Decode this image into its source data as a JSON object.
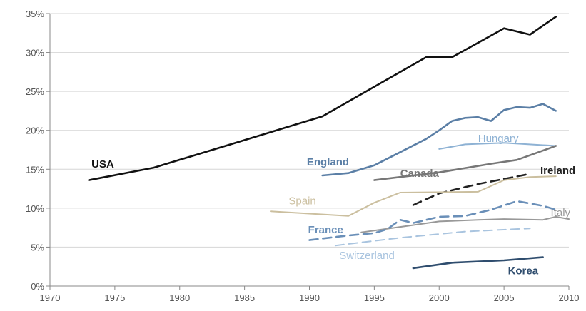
{
  "chart_data": {
    "type": "line",
    "title": "",
    "xlabel": "",
    "ylabel": "",
    "xlim": [
      1970,
      2010
    ],
    "ylim": [
      0,
      35
    ],
    "x_ticks": [
      1970,
      1975,
      1980,
      1985,
      1990,
      1995,
      2000,
      2005,
      2010
    ],
    "y_ticks": [
      0,
      5,
      10,
      15,
      20,
      25,
      30,
      35
    ],
    "y_tick_labels": [
      "0%",
      "5%",
      "10%",
      "15%",
      "20%",
      "25%",
      "30%",
      "35%"
    ],
    "x_tick_labels": [
      "1970",
      "1975",
      "1980",
      "1985",
      "1990",
      "1995",
      "2000",
      "2005",
      "2010"
    ],
    "grid": "horizontal",
    "legend": "none (direct labels)",
    "series": [
      {
        "name": "USA",
        "color": "#111111",
        "dash": "solid",
        "bold": true,
        "points": [
          [
            1973,
            13.6
          ],
          [
            1978,
            15.2
          ],
          [
            1991,
            21.8
          ],
          [
            1999,
            29.4
          ],
          [
            2001,
            29.4
          ],
          [
            2005,
            33.1
          ],
          [
            2007,
            32.3
          ],
          [
            2009,
            34.6
          ]
        ]
      },
      {
        "name": "England",
        "color": "#5b7fa6",
        "dash": "solid",
        "bold": true,
        "points": [
          [
            1991,
            14.2
          ],
          [
            1993,
            14.5
          ],
          [
            1995,
            15.5
          ],
          [
            1997,
            17.2
          ],
          [
            1999,
            18.9
          ],
          [
            2000,
            20.0
          ],
          [
            2001,
            21.2
          ],
          [
            2002,
            21.6
          ],
          [
            2003,
            21.7
          ],
          [
            2004,
            21.2
          ],
          [
            2005,
            22.6
          ],
          [
            2006,
            23.0
          ],
          [
            2007,
            22.9
          ],
          [
            2008,
            23.4
          ],
          [
            2009,
            22.5
          ]
        ]
      },
      {
        "name": "Hungary",
        "color": "#8eb2d4",
        "dash": "solid",
        "bold": false,
        "points": [
          [
            2000,
            17.6
          ],
          [
            2002,
            18.2
          ],
          [
            2005,
            18.4
          ],
          [
            2009,
            18.0
          ]
        ]
      },
      {
        "name": "Canada",
        "color": "#777777",
        "dash": "solid",
        "bold": true,
        "points": [
          [
            1995,
            13.6
          ],
          [
            2000,
            14.6
          ],
          [
            2004,
            15.7
          ],
          [
            2006,
            16.2
          ],
          [
            2009,
            18.0
          ]
        ]
      },
      {
        "name": "Ireland",
        "color": "#222222",
        "dash": "dashed",
        "bold": true,
        "points": [
          [
            1998,
            10.4
          ],
          [
            2000,
            11.9
          ],
          [
            2003,
            13.1
          ],
          [
            2007,
            14.4
          ]
        ]
      },
      {
        "name": "Spain",
        "color": "#cbbf9f",
        "dash": "solid",
        "bold": false,
        "points": [
          [
            1987,
            9.6
          ],
          [
            1993,
            9.0
          ],
          [
            1995,
            10.7
          ],
          [
            1997,
            12.0
          ],
          [
            2003,
            12.1
          ],
          [
            2005,
            13.6
          ],
          [
            2007,
            14.0
          ],
          [
            2009,
            14.1
          ]
        ]
      },
      {
        "name": "Italy",
        "color": "#999999",
        "dash": "solid",
        "bold": false,
        "points": [
          [
            1994,
            6.9
          ],
          [
            1997,
            7.6
          ],
          [
            2000,
            8.3
          ],
          [
            2003,
            8.5
          ],
          [
            2005,
            8.6
          ],
          [
            2008,
            8.5
          ],
          [
            2009,
            8.9
          ],
          [
            2010,
            8.6
          ]
        ]
      },
      {
        "name": "France",
        "color": "#6a8fb8",
        "dash": "dashed",
        "bold": true,
        "points": [
          [
            1990,
            5.9
          ],
          [
            1993,
            6.5
          ],
          [
            1995,
            6.8
          ],
          [
            1996,
            7.3
          ],
          [
            1997,
            8.5
          ],
          [
            1998,
            8.1
          ],
          [
            2000,
            8.9
          ],
          [
            2002,
            9.0
          ],
          [
            2004,
            9.8
          ],
          [
            2006,
            10.9
          ],
          [
            2008,
            10.3
          ],
          [
            2009,
            9.8
          ]
        ]
      },
      {
        "name": "Switzerland",
        "color": "#a9c4df",
        "dash": "dashed",
        "bold": false,
        "points": [
          [
            1992,
            5.2
          ],
          [
            1997,
            6.2
          ],
          [
            2002,
            7.0
          ],
          [
            2007,
            7.4
          ]
        ]
      },
      {
        "name": "Korea",
        "color": "#2f4d6e",
        "dash": "solid",
        "bold": true,
        "points": [
          [
            1998,
            2.3
          ],
          [
            2001,
            3.0
          ],
          [
            2005,
            3.3
          ],
          [
            2008,
            3.7
          ]
        ]
      }
    ],
    "labels": [
      {
        "series": "USA",
        "text": "USA",
        "x": 1973.2,
        "y": 15.2,
        "color": "#111111",
        "bold": true
      },
      {
        "series": "England",
        "text": "England",
        "x": 1989.8,
        "y": 15.5,
        "color": "#5b7fa6",
        "bold": true
      },
      {
        "series": "Hungary",
        "text": "Hungary",
        "x": 2003.0,
        "y": 18.5,
        "color": "#8eb2d4",
        "bold": false
      },
      {
        "series": "Canada",
        "text": "Canada",
        "x": 1997.0,
        "y": 14.0,
        "color": "#777777",
        "bold": true
      },
      {
        "series": "Ireland",
        "text": "Ireland",
        "x": 2007.8,
        "y": 14.4,
        "color": "#222222",
        "bold": true
      },
      {
        "series": "Spain",
        "text": "Spain",
        "x": 1988.4,
        "y": 10.5,
        "color": "#cbbf9f",
        "bold": false
      },
      {
        "series": "Italy",
        "text": "Italy",
        "x": 2008.6,
        "y": 9.0,
        "color": "#999999",
        "bold": false
      },
      {
        "series": "France",
        "text": "France",
        "x": 1989.9,
        "y": 6.8,
        "color": "#6a8fb8",
        "bold": true
      },
      {
        "series": "Switzerland",
        "text": "Switzerland",
        "x": 1992.3,
        "y": 3.5,
        "color": "#a9c4df",
        "bold": false
      },
      {
        "series": "Korea",
        "text": "Korea",
        "x": 2005.3,
        "y": 1.5,
        "color": "#2f4d6e",
        "bold": true
      }
    ]
  }
}
